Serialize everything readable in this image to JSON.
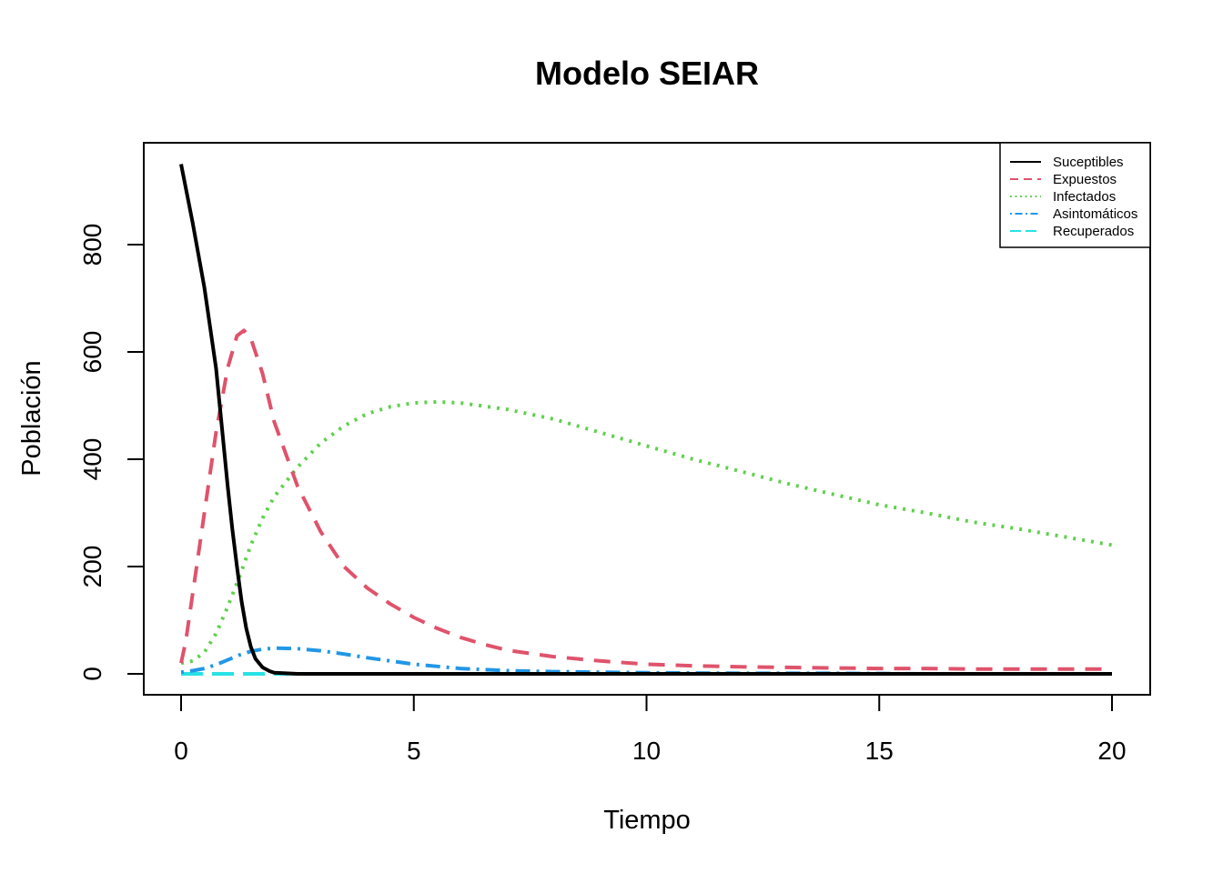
{
  "chart_data": {
    "type": "line",
    "title": "Modelo SEIAR",
    "xlabel": "Tiempo",
    "ylabel": "Población",
    "xlim": [
      0,
      20
    ],
    "ylim": [
      0,
      950
    ],
    "xticks": [
      0,
      5,
      10,
      15,
      20
    ],
    "yticks": [
      0,
      200,
      400,
      600,
      800
    ],
    "grid": false,
    "legend_position": "top-right",
    "series": [
      {
        "name": "Suceptibles",
        "color": "#000000",
        "dash": "solid",
        "x": [
          0,
          0.25,
          0.5,
          0.75,
          0.9,
          1.0,
          1.1,
          1.2,
          1.3,
          1.4,
          1.5,
          1.6,
          1.75,
          1.9,
          2.0,
          2.25,
          2.5,
          3,
          4,
          5,
          6,
          8,
          10,
          12,
          14,
          16,
          18,
          20
        ],
        "y": [
          950,
          840,
          720,
          570,
          440,
          350,
          270,
          200,
          135,
          85,
          50,
          28,
          12,
          5,
          2,
          1,
          0,
          0,
          0,
          0,
          0,
          0,
          0,
          0,
          0,
          0,
          0,
          0
        ]
      },
      {
        "name": "Expuestos",
        "color": "#DF536B",
        "dash": "dashed",
        "x": [
          0,
          0.1,
          0.25,
          0.5,
          0.75,
          1.0,
          1.2,
          1.35,
          1.5,
          1.75,
          2.0,
          2.5,
          3.0,
          3.5,
          4.0,
          4.5,
          5.0,
          5.5,
          6.0,
          6.5,
          7.0,
          8.0,
          9.0,
          10,
          11,
          12,
          13,
          14,
          15,
          16,
          17,
          18,
          19,
          20
        ],
        "y": [
          20,
          60,
          150,
          300,
          450,
          570,
          630,
          640,
          625,
          560,
          470,
          350,
          265,
          200,
          160,
          130,
          105,
          85,
          68,
          55,
          44,
          32,
          24,
          18,
          15,
          13,
          12,
          11,
          10,
          10,
          9,
          9,
          9,
          9
        ]
      },
      {
        "name": "Infectados",
        "color": "#61D04F",
        "dash": "dotted",
        "x": [
          0,
          0.25,
          0.5,
          0.75,
          1.0,
          1.25,
          1.5,
          1.75,
          2.0,
          2.5,
          3.0,
          3.5,
          4.0,
          4.5,
          5.0,
          5.5,
          6.0,
          7.0,
          8.0,
          9.0,
          10,
          11,
          12,
          13,
          14,
          15,
          16,
          17,
          18,
          19,
          20
        ],
        "y": [
          20,
          24,
          40,
          75,
          125,
          180,
          240,
          290,
          330,
          385,
          430,
          462,
          485,
          498,
          505,
          507,
          505,
          493,
          475,
          450,
          425,
          400,
          378,
          355,
          335,
          315,
          300,
          283,
          270,
          255,
          240
        ]
      },
      {
        "name": "Asintomáticos",
        "color": "#2297E6",
        "dash": "dotdash",
        "x": [
          0,
          0.25,
          0.5,
          0.75,
          1.0,
          1.25,
          1.5,
          1.75,
          2.0,
          2.5,
          3.0,
          3.5,
          4.0,
          5.0,
          6.0,
          7.0,
          8.0,
          9.0,
          10,
          12,
          14,
          16,
          18,
          20
        ],
        "y": [
          3,
          6,
          10,
          17,
          26,
          35,
          42,
          46,
          48,
          47,
          43,
          37,
          30,
          18,
          10,
          6,
          4,
          3,
          2,
          1,
          1,
          0,
          0,
          0
        ]
      },
      {
        "name": "Recuperados",
        "color": "#28E2E5",
        "dash": "longdash",
        "x": [
          0,
          5,
          10,
          15,
          20
        ],
        "y": [
          0,
          0,
          0,
          0,
          0
        ]
      }
    ]
  }
}
